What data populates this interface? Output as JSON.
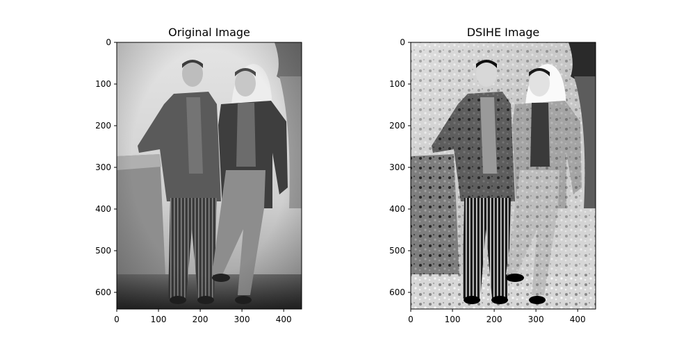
{
  "panels": [
    {
      "title": "Original Image",
      "xticks": [
        "0",
        "100",
        "200",
        "300",
        "400"
      ],
      "yticks": [
        "0",
        "100",
        "200",
        "300",
        "400",
        "500",
        "600"
      ]
    },
    {
      "title": "DSIHE Image",
      "xticks": [
        "0",
        "100",
        "200",
        "300",
        "400"
      ],
      "yticks": [
        "0",
        "100",
        "200",
        "300",
        "400",
        "500",
        "600"
      ]
    }
  ]
}
